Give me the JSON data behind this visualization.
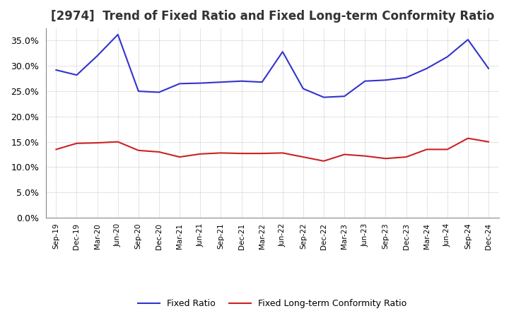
{
  "title": "[2974]  Trend of Fixed Ratio and Fixed Long-term Conformity Ratio",
  "x_labels": [
    "Sep-19",
    "Dec-19",
    "Mar-20",
    "Jun-20",
    "Sep-20",
    "Dec-20",
    "Mar-21",
    "Jun-21",
    "Sep-21",
    "Dec-21",
    "Mar-22",
    "Jun-22",
    "Sep-22",
    "Dec-22",
    "Mar-23",
    "Jun-23",
    "Sep-23",
    "Dec-23",
    "Mar-24",
    "Jun-24",
    "Sep-24",
    "Dec-24"
  ],
  "fixed_ratio": [
    0.292,
    0.282,
    0.32,
    0.362,
    0.25,
    0.248,
    0.265,
    0.266,
    0.268,
    0.27,
    0.268,
    0.328,
    0.255,
    0.238,
    0.24,
    0.27,
    0.272,
    0.277,
    0.295,
    0.318,
    0.352,
    0.295
  ],
  "fixed_lt_ratio": [
    0.135,
    0.147,
    0.148,
    0.15,
    0.133,
    0.13,
    0.12,
    0.126,
    0.128,
    0.127,
    0.127,
    0.128,
    0.12,
    0.112,
    0.125,
    0.122,
    0.117,
    0.12,
    0.135,
    0.135,
    0.157,
    0.15
  ],
  "fixed_ratio_color": "#3333cc",
  "fixed_lt_ratio_color": "#cc2222",
  "ylim": [
    0.0,
    0.375
  ],
  "yticks": [
    0.0,
    0.05,
    0.1,
    0.15,
    0.2,
    0.25,
    0.3,
    0.35
  ],
  "background_color": "#ffffff",
  "grid_color": "#aaaaaa",
  "title_fontsize": 12,
  "legend_labels": [
    "Fixed Ratio",
    "Fixed Long-term Conformity Ratio"
  ]
}
